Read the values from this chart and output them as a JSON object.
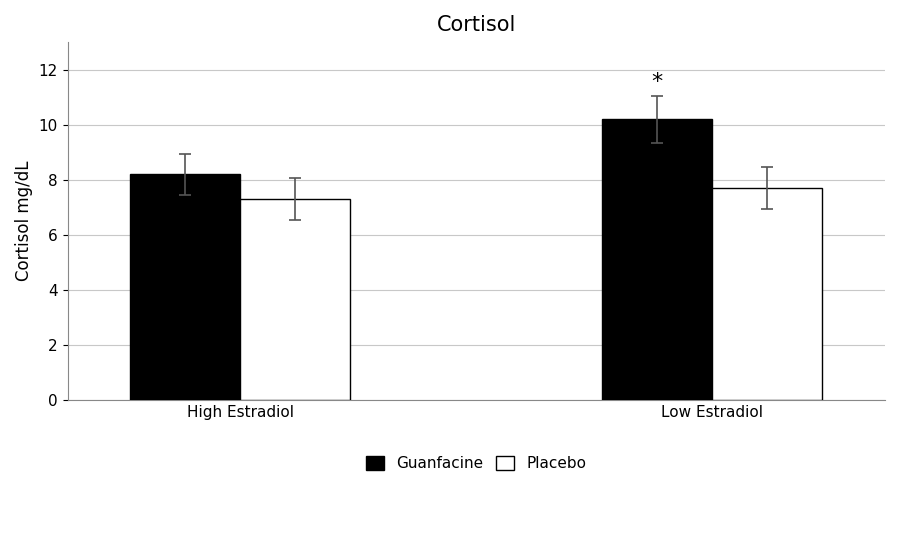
{
  "title": "Cortisol",
  "ylabel": "Cortisol mg/dL",
  "groups": [
    "High Estradiol",
    "Low Estradiol"
  ],
  "series": [
    "Guanfacine",
    "Placebo"
  ],
  "values": {
    "Guanfacine": [
      8.2,
      10.2
    ],
    "Placebo": [
      7.3,
      7.7
    ]
  },
  "errors": {
    "Guanfacine": [
      0.75,
      0.85
    ],
    "Placebo": [
      0.75,
      0.75
    ]
  },
  "bar_colors": {
    "Guanfacine": "#000000",
    "Placebo": "#ffffff"
  },
  "bar_edge_colors": {
    "Guanfacine": "#000000",
    "Placebo": "#000000"
  },
  "ylim": [
    0,
    13
  ],
  "yticks": [
    0,
    2,
    4,
    6,
    8,
    10,
    12
  ],
  "bar_width": 0.35,
  "group_centers": [
    1.0,
    2.5
  ],
  "asterisk_group": 1,
  "asterisk_series": "Guanfacine",
  "background_color": "#ffffff",
  "grid_color": "#c8c8c8",
  "title_fontsize": 15,
  "label_fontsize": 12,
  "tick_fontsize": 11,
  "legend_fontsize": 11
}
